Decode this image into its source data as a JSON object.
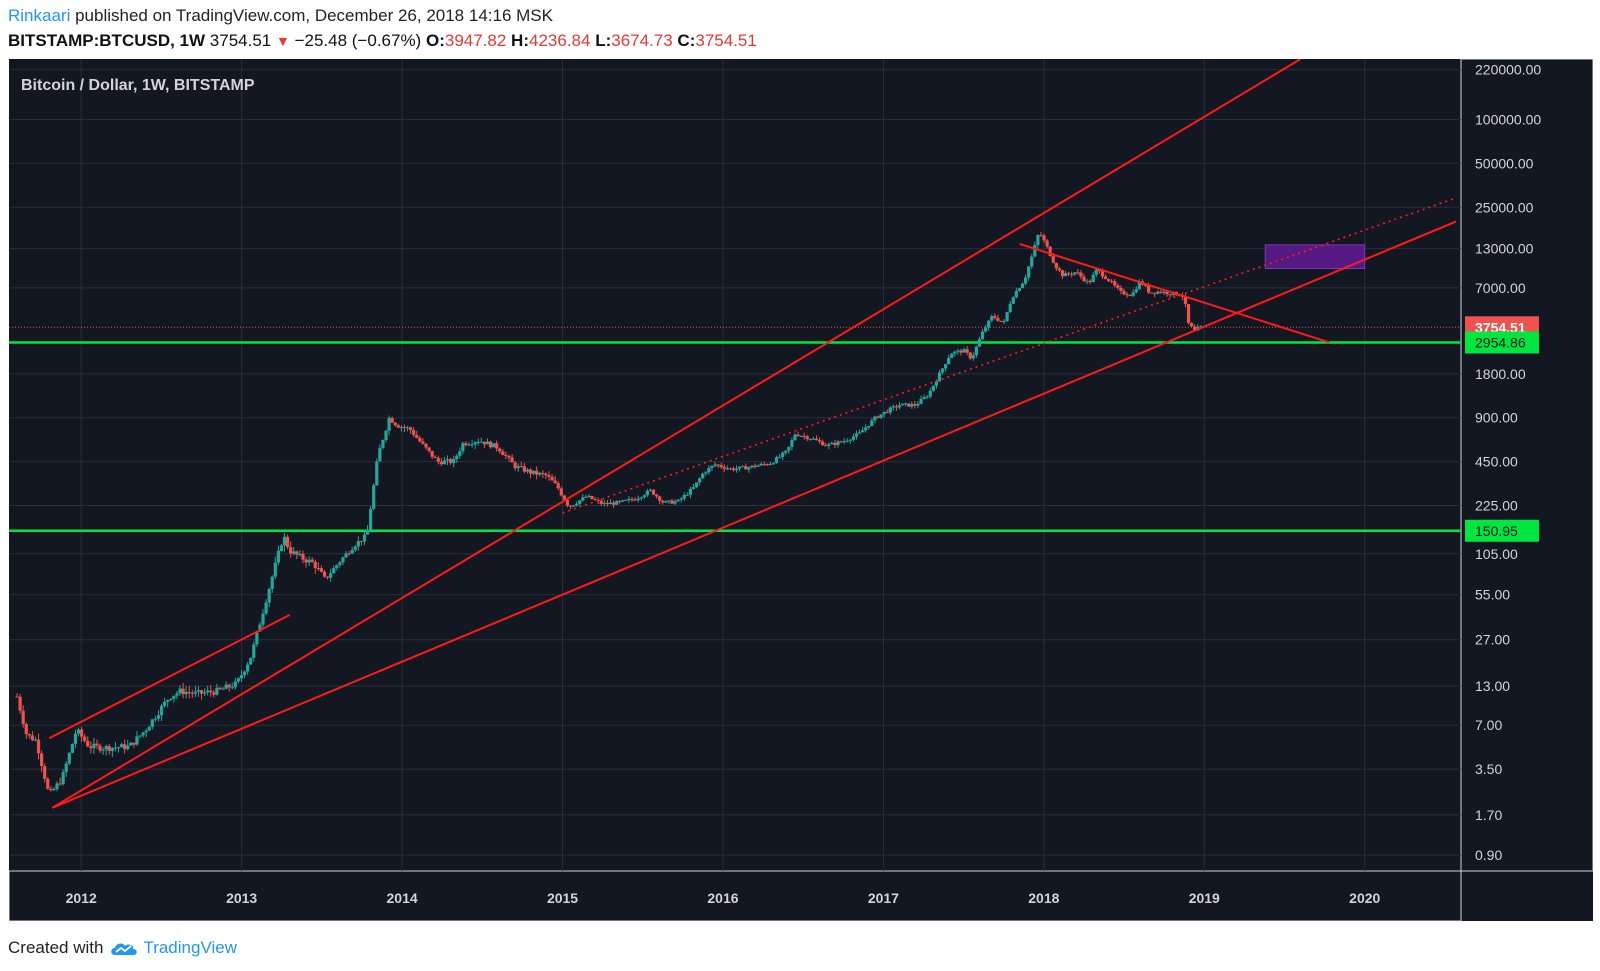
{
  "header": {
    "author": "Rinkaari",
    "published_text": "published on TradingView.com, December 26, 2018 14:16 MSK",
    "symbol": "BITSTAMP:BTCUSD, 1W",
    "last_price": "3754.51",
    "change": "−25.48 (−0.67%)",
    "o_label": "O:",
    "o_value": "3947.82",
    "h_label": "H:",
    "h_value": "4236.84",
    "l_label": "L:",
    "l_value": "3674.73",
    "c_label": "C:",
    "c_value": "3754.51"
  },
  "footer": {
    "created_with": "Created with",
    "brand": "TradingView"
  },
  "colors": {
    "background": "#131722",
    "grid": "#2a2e39",
    "up": "#26a69a",
    "down": "#ef5350",
    "trendline": "#ff1a1a",
    "support": "#00e640",
    "target_box": "#5a1a8a"
  },
  "chart_data": {
    "type": "candlestick",
    "title": "Bitcoin / Dollar, 1W, BITSTAMP",
    "scale": "log",
    "ylim": [
      0.7,
      260000
    ],
    "xlim": [
      2011.55,
      2020.6
    ],
    "y_ticks": [
      "220000.00",
      "100000.00",
      "50000.00",
      "25000.00",
      "13000.00",
      "7000.00",
      "3754.51",
      "2954.86",
      "1800.00",
      "900.00",
      "450.00",
      "225.00",
      "150.95",
      "105.00",
      "55.00",
      "27.00",
      "13.00",
      "7.00",
      "3.50",
      "1.70",
      "0.90"
    ],
    "x_ticks": [
      "2012",
      "2013",
      "2014",
      "2015",
      "2016",
      "2017",
      "2018",
      "2019",
      "2020"
    ],
    "price_labels": [
      {
        "label": "3754.51",
        "value": 3754.51,
        "kind": "last"
      },
      {
        "label": "2954.86",
        "value": 2954.86,
        "kind": "support"
      },
      {
        "label": "150.95",
        "value": 150.95,
        "kind": "support"
      }
    ],
    "price_path": [
      [
        2011.6,
        11
      ],
      [
        2011.66,
        6
      ],
      [
        2011.72,
        5.5
      ],
      [
        2011.8,
        2.3
      ],
      [
        2011.88,
        3.0
      ],
      [
        2011.97,
        6.5
      ],
      [
        2012.05,
        5.0
      ],
      [
        2012.15,
        4.9
      ],
      [
        2012.3,
        5.0
      ],
      [
        2012.4,
        6.5
      ],
      [
        2012.55,
        11
      ],
      [
        2012.62,
        12
      ],
      [
        2012.72,
        11.5
      ],
      [
        2012.85,
        12
      ],
      [
        2012.97,
        13.5
      ],
      [
        2013.06,
        21
      ],
      [
        2013.15,
        50
      ],
      [
        2013.26,
        140
      ],
      [
        2013.3,
        110
      ],
      [
        2013.36,
        100
      ],
      [
        2013.45,
        90
      ],
      [
        2013.52,
        70
      ],
      [
        2013.6,
        90
      ],
      [
        2013.7,
        120
      ],
      [
        2013.78,
        140
      ],
      [
        2013.85,
        500
      ],
      [
        2013.92,
        900
      ],
      [
        2013.97,
        800
      ],
      [
        2014.05,
        750
      ],
      [
        2014.12,
        600
      ],
      [
        2014.22,
        450
      ],
      [
        2014.32,
        450
      ],
      [
        2014.38,
        600
      ],
      [
        2014.48,
        630
      ],
      [
        2014.6,
        560
      ],
      [
        2014.7,
        420
      ],
      [
        2014.8,
        380
      ],
      [
        2014.9,
        360
      ],
      [
        2014.97,
        300
      ],
      [
        2015.04,
        220
      ],
      [
        2015.15,
        260
      ],
      [
        2015.25,
        230
      ],
      [
        2015.35,
        235
      ],
      [
        2015.45,
        250
      ],
      [
        2015.55,
        285
      ],
      [
        2015.63,
        235
      ],
      [
        2015.72,
        240
      ],
      [
        2015.82,
        300
      ],
      [
        2015.88,
        380
      ],
      [
        2015.95,
        430
      ],
      [
        2016.05,
        400
      ],
      [
        2016.15,
        410
      ],
      [
        2016.3,
        440
      ],
      [
        2016.4,
        530
      ],
      [
        2016.45,
        700
      ],
      [
        2016.55,
        650
      ],
      [
        2016.65,
        580
      ],
      [
        2016.75,
        620
      ],
      [
        2016.85,
        700
      ],
      [
        2016.95,
        900
      ],
      [
        2017.02,
        1000
      ],
      [
        2017.1,
        1100
      ],
      [
        2017.2,
        1100
      ],
      [
        2017.28,
        1300
      ],
      [
        2017.35,
        1800
      ],
      [
        2017.42,
        2500
      ],
      [
        2017.5,
        2600
      ],
      [
        2017.55,
        2300
      ],
      [
        2017.62,
        3500
      ],
      [
        2017.68,
        4500
      ],
      [
        2017.75,
        4000
      ],
      [
        2017.8,
        6000
      ],
      [
        2017.88,
        8000
      ],
      [
        2017.92,
        11000
      ],
      [
        2017.97,
        17000
      ],
      [
        2018.01,
        14000
      ],
      [
        2018.07,
        10000
      ],
      [
        2018.12,
        8500
      ],
      [
        2018.2,
        9000
      ],
      [
        2018.28,
        7500
      ],
      [
        2018.33,
        9300
      ],
      [
        2018.4,
        8000
      ],
      [
        2018.48,
        6500
      ],
      [
        2018.55,
        6300
      ],
      [
        2018.6,
        7800
      ],
      [
        2018.66,
        6500
      ],
      [
        2018.72,
        6600
      ],
      [
        2018.8,
        6400
      ],
      [
        2018.86,
        6300
      ],
      [
        2018.88,
        5500
      ],
      [
        2018.9,
        4000
      ],
      [
        2018.94,
        3500
      ],
      [
        2018.97,
        3780
      ],
      [
        2018.985,
        3754.51
      ]
    ],
    "trendlines": [
      {
        "name": "upper-channel-line",
        "from": [
          2011.82,
          1.9
        ],
        "to": [
          2019.6,
          260000
        ],
        "style": "solid"
      },
      {
        "name": "long-term-support-line",
        "from": [
          2011.82,
          1.9
        ],
        "to": [
          2020.57,
          20000
        ],
        "style": "solid"
      },
      {
        "name": "early-resistance-line",
        "from": [
          2011.8,
          5.7
        ],
        "to": [
          2013.3,
          40
        ],
        "style": "solid"
      },
      {
        "name": "dotted-trend-line",
        "from": [
          2015.0,
          200
        ],
        "to": [
          2020.57,
          29000
        ],
        "style": "dotted"
      },
      {
        "name": "descending-resistance-line",
        "from": [
          2017.85,
          14000
        ],
        "to": [
          2019.78,
          2954.86
        ],
        "style": "solid"
      }
    ],
    "support_levels": [
      2954.86,
      150.95
    ],
    "target_zone": {
      "x": [
        2019.38,
        2020.0
      ],
      "y": [
        9500,
        13800
      ]
    }
  }
}
